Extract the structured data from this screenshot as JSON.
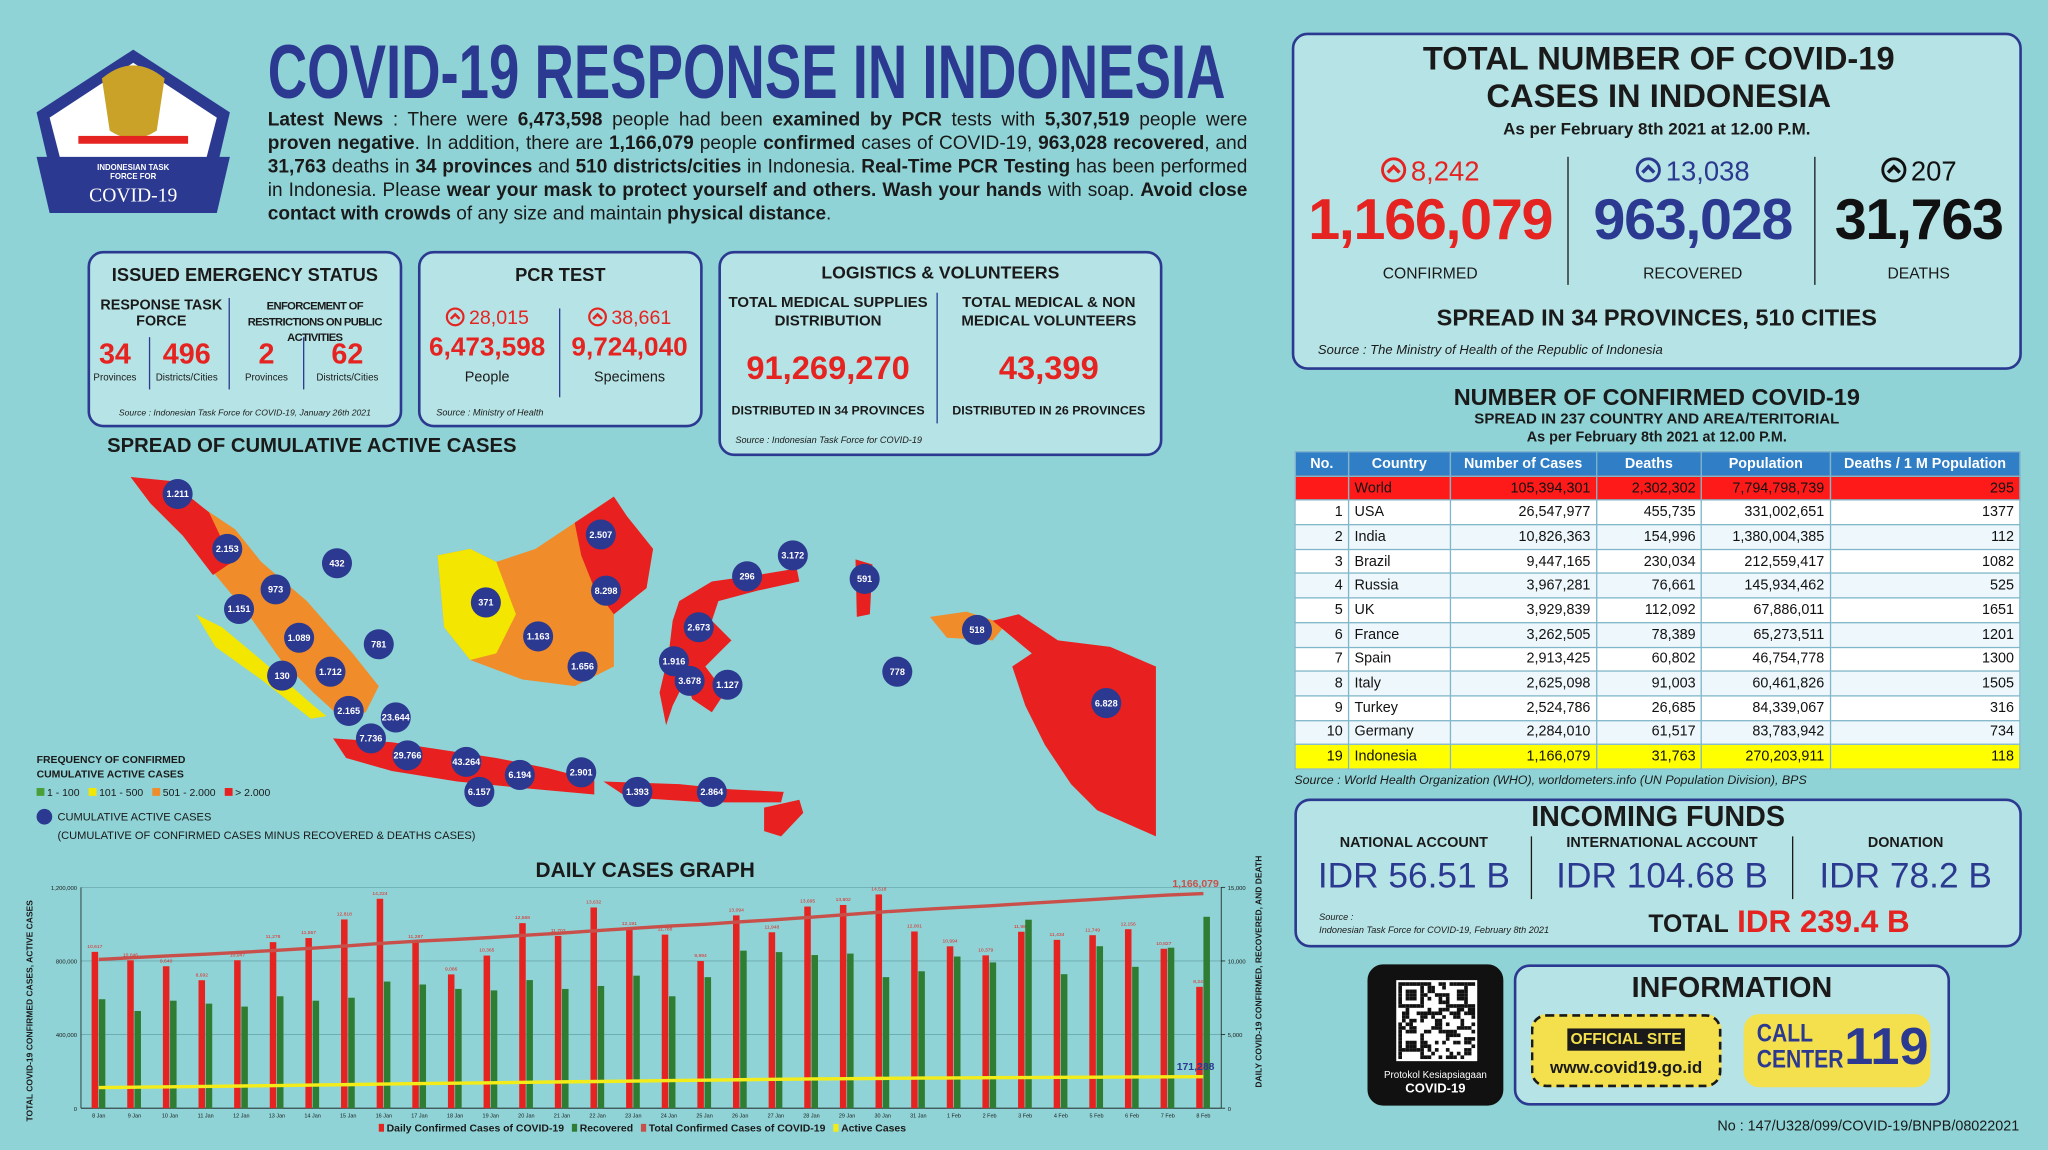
{
  "header": {
    "title": "COVID-19 RESPONSE IN INDONESIA",
    "logo": [
      "INDONESIAN TASK",
      "FORCE FOR",
      "COVID-19"
    ],
    "news": [
      {
        "text": "Latest News",
        "bold": true
      },
      " : There were ",
      {
        "text": "6,473,598",
        "bold": true
      },
      " people had been ",
      {
        "text": "examined by PCR",
        "bold": true
      },
      " tests with ",
      {
        "text": "5,307,519",
        "bold": true
      },
      " people were ",
      {
        "text": "proven negative",
        "bold": true
      },
      ". In addition, there are ",
      {
        "text": "1,166,079",
        "bold": true
      },
      " people ",
      {
        "text": "confirmed",
        "bold": true
      },
      " cases of COVID-19, ",
      {
        "text": "963,028 recovered",
        "bold": true
      },
      ", and ",
      {
        "text": "31,763",
        "bold": true
      },
      " deaths in ",
      {
        "text": "34 provinces",
        "bold": true
      },
      " and ",
      {
        "text": "510 districts/cities",
        "bold": true
      },
      " in Indonesia. ",
      {
        "text": "Real-Time PCR Testing",
        "bold": true
      },
      " has been performed in Indonesia. Please ",
      {
        "text": "wear your mask to protect yourself and others. Wash your hands",
        "bold": true
      },
      " with soap. ",
      {
        "text": "Avoid close contact with crowds",
        "bold": true
      },
      " of any size and maintain ",
      {
        "text": "physical distance",
        "bold": true
      },
      "."
    ]
  },
  "emergency": {
    "title": "ISSUED EMERGENCY STATUS",
    "groups": [
      {
        "label": "RESPONSE TASK FORCE",
        "items": [
          {
            "value": 34,
            "unit": "Provinces"
          },
          {
            "value": 496,
            "unit": "Districts/Cities"
          }
        ]
      },
      {
        "label": "ENFORCEMENT OF RESTRICTIONS ON PUBLIC ACTIVITIES",
        "items": [
          {
            "value": 2,
            "unit": "Provinces"
          },
          {
            "value": 62,
            "unit": "Districts/Cities"
          }
        ]
      }
    ],
    "source": "Source : Indonesian Task Force for COVID-19, January 26th 2021"
  },
  "pcr": {
    "title": "PCR TEST",
    "items": [
      {
        "increase": "28,015",
        "total": "6,473,598",
        "label": "People"
      },
      {
        "increase": "38,661",
        "total": "9,724,040",
        "label": "Specimens"
      }
    ],
    "source": "Source : Ministry of Health"
  },
  "logistics": {
    "title": "LOGISTICS & VOLUNTEERS",
    "items": [
      {
        "label": "TOTAL MEDICAL SUPPLIES DISTRIBUTION",
        "value": "91,269,270",
        "note": "DISTRIBUTED IN 34 PROVINCES"
      },
      {
        "label": "TOTAL MEDICAL & NON MEDICAL VOLUNTEERS",
        "value": "43,399",
        "note": "DISTRIBUTED IN 26 PROVINCES"
      }
    ],
    "source": "Source : Indonesian Task Force for COVID-19"
  },
  "totals": {
    "title": "TOTAL NUMBER OF COVID-19 CASES IN INDONESIA",
    "date": "As per February 8th 2021 at 12.00 P.M.",
    "stats": [
      {
        "increase": "8,242",
        "value": "1,166,079",
        "label": "CONFIRMED",
        "color": "#e52421"
      },
      {
        "increase": "13,038",
        "value": "963,028",
        "label": "RECOVERED",
        "color": "#2b3990"
      },
      {
        "increase": "207",
        "value": "31,763",
        "label": "DEATHS",
        "color": "#111111"
      }
    ],
    "spread": "SPREAD IN 34 PROVINCES, 510 CITIES",
    "source": "Source : The Ministry of Health of the Republic of Indonesia"
  },
  "world_table": {
    "title": "NUMBER OF CONFIRMED COVID-19",
    "subtitle": "SPREAD IN 237 COUNTRY AND AREA/TERITORIAL",
    "date": "As per February 8th 2021 at 12.00 P.M.",
    "columns": [
      "No.",
      "Country",
      "Number of Cases",
      "Deaths",
      "Population",
      "Deaths / 1 M Population"
    ],
    "rows": [
      [
        null,
        "World",
        "105,394,301",
        "2,302,302",
        "7,794,798,739",
        "295"
      ],
      [
        "1",
        "USA",
        "26,547,977",
        "455,735",
        "331,002,651",
        "1377"
      ],
      [
        "2",
        "India",
        "10,826,363",
        "154,996",
        "1,380,004,385",
        "112"
      ],
      [
        "3",
        "Brazil",
        "9,447,165",
        "230,034",
        "212,559,417",
        "1082"
      ],
      [
        "4",
        "Russia",
        "3,967,281",
        "76,661",
        "145,934,462",
        "525"
      ],
      [
        "5",
        "UK",
        "3,929,839",
        "112,092",
        "67,886,011",
        "1651"
      ],
      [
        "6",
        "France",
        "3,262,505",
        "78,389",
        "65,273,511",
        "1201"
      ],
      [
        "7",
        "Spain",
        "2,913,425",
        "60,802",
        "46,754,778",
        "1300"
      ],
      [
        "8",
        "Italy",
        "2,625,098",
        "91,003",
        "60,461,826",
        "1505"
      ],
      [
        "9",
        "Turkey",
        "2,524,786",
        "26,685",
        "84,339,067",
        "316"
      ],
      [
        "10",
        "Germany",
        "2,284,010",
        "61,517",
        "83,783,942",
        "734"
      ],
      [
        "19",
        "Indonesia",
        "1,166,079",
        "31,763",
        "270,203,911",
        "118"
      ]
    ],
    "row_colors": {
      "0": "#ff1a1a",
      "11": "#ffff00"
    },
    "source": "Source : World Health Organization (WHO), worldometers.info (UN Population Division), BPS"
  },
  "funds": {
    "title": "INCOMING FUNDS",
    "items": [
      {
        "label": "NATIONAL ACCOUNT",
        "value": "IDR 56.51 B"
      },
      {
        "label": "INTERNATIONAL ACCOUNT",
        "value": "IDR 104.68 B"
      },
      {
        "label": "DONATION",
        "value": "IDR 78.2 B"
      }
    ],
    "total_label": "TOTAL",
    "total": "IDR 239.4 B",
    "source": [
      "Source :",
      "Indonesian Task Force for COVID-19, February 8th 2021"
    ]
  },
  "qr": [
    "Protokol Kesiapsiagaan",
    "COVID-19"
  ],
  "information": {
    "title": "INFORMATION",
    "official_site": "OFFICIAL SITE",
    "url": "www.covid19.go.id",
    "call_center": [
      "CALL",
      "CENTER"
    ],
    "number": "119"
  },
  "map": {
    "title": "SPREAD OF CUMULATIVE ACTIVE CASES",
    "legend_title": [
      "FREQUENCY OF CONFIRMED",
      "CUMULATIVE ACTIVE CASES"
    ],
    "legend": [
      {
        "label": "1 - 100",
        "color": "#4c9f38"
      },
      {
        "label": "101 - 500",
        "color": "#f3e600"
      },
      {
        "label": "501 - 2.000",
        "color": "#f08c2a"
      },
      {
        "label": "> 2.000",
        "color": "#e8201f"
      }
    ],
    "bubble_legend": [
      "CUMULATIVE ACTIVE CASES",
      "(CUMULATIVE OF CONFIRMED CASES MINUS RECOVERED & DEATHS CASES)"
    ],
    "bubbles": [
      "1.211",
      "2.153",
      "432",
      "973",
      "1.151",
      "1.089",
      "781",
      "1.712",
      "130",
      "2.165",
      "23.644",
      "7.736",
      "29.766",
      "43.264",
      "6.157",
      "6.194",
      "2.901",
      "1.393",
      "2.864",
      "371",
      "1.163",
      "2.507",
      "8.298",
      "1.656",
      "296",
      "3.172",
      "591",
      "2.673",
      "1.916",
      "3.678",
      "1.127",
      "778",
      "518",
      "6.828"
    ]
  },
  "chart_data": {
    "type": "bar",
    "title": "DAILY CASES GRAPH",
    "y_label": "TOTAL COVID-19 CONFIRMED CASES, ACTIVE CASES",
    "y2_label": "DAILY COVID-19 CONFIRMED, RECOVERED, AND DEATH",
    "categories": [
      "8 Jan",
      "9 Jan",
      "10 Jan",
      "11 Jan",
      "12 Jan",
      "13 Jan",
      "14 Jan",
      "15 Jan",
      "16 Jan",
      "17 Jan",
      "18 Jan",
      "19 Jan",
      "20 Jan",
      "21 Jan",
      "22 Jan",
      "23 Jan",
      "24 Jan",
      "25 Jan",
      "26 Jan",
      "27 Jan",
      "28 Jan",
      "29 Jan",
      "30 Jan",
      "31 Jan",
      "1 Feb",
      "2 Feb",
      "3 Feb",
      "4 Feb",
      "5 Feb",
      "6 Feb",
      "7 Feb",
      "8 Feb"
    ],
    "ylim": [
      0,
      1200000
    ],
    "yticks": [
      0,
      {
        "value": 400000,
        "label": "400,000"
      },
      {
        "value": 800000,
        "label": "800,000"
      },
      {
        "value": 1200000,
        "label": "1,200,000"
      }
    ],
    "y2lim": [
      0,
      15000
    ],
    "y2ticks": [
      0,
      {
        "value": 5000,
        "label": "5,000"
      },
      {
        "value": 10000,
        "label": "10,000"
      },
      {
        "value": 15000,
        "label": "15,000"
      }
    ],
    "grid": true,
    "series": [
      {
        "name": "Daily Confirmed Cases of COVID-19",
        "type": "bar",
        "axis": "y2",
        "color": "#e52421",
        "values": [
          10617,
          10046,
          9640,
          8692,
          10047,
          11278,
          11557,
          12818,
          14224,
          11287,
          9086,
          10365,
          12568,
          11703,
          13632,
          12191,
          11788,
          9994,
          13094,
          11948,
          13695,
          13802,
          14518,
          12001,
          10994,
          10379,
          11984,
          11434,
          11749,
          12156,
          10827,
          8242
        ],
        "value_labels": [
          "10,617",
          "10,046",
          "9,640",
          "8,692",
          "10,047",
          "11,278",
          "11,557",
          "12,818",
          "14,224",
          "11,287",
          "9,086",
          "10,365",
          "12,568",
          "11,703",
          "13,632",
          "12,191",
          "11,788",
          "9,994",
          "13,094",
          "11,948",
          "13,695",
          "13,802",
          "14,518",
          "12,001",
          "10,994",
          "10,379",
          "11,984",
          "11,434",
          "11,749",
          "12,156",
          "10,827",
          "8,242"
        ]
      },
      {
        "name": "Recovered",
        "type": "bar",
        "axis": "y2",
        "color": "#2e7d32",
        "values": [
          7400,
          6600,
          7300,
          7100,
          6900,
          7600,
          7300,
          7500,
          8600,
          8400,
          8100,
          8000,
          8700,
          8100,
          8300,
          9000,
          7600,
          8900,
          10700,
          10600,
          10400,
          10500,
          8900,
          9300,
          10300,
          9900,
          12800,
          9100,
          11000,
          9600,
          10900,
          13000
        ]
      },
      {
        "name": "Total Confirmed Cases of COVID-19",
        "type": "line",
        "axis": "y",
        "color": "#c9504a",
        "values": [
          808340,
          818386,
          828026,
          836718,
          846765,
          858043,
          869600,
          882418,
          896642,
          907929,
          917015,
          927380,
          939948,
          951651,
          965283,
          977474,
          989262,
          999256,
          1012350,
          1024298,
          1037993,
          1051795,
          1066313,
          1078314,
          1089308,
          1099687,
          1111671,
          1123105,
          1134854,
          1147010,
          1157837,
          1166079
        ],
        "end_label": "1,166,079"
      },
      {
        "name": "Active Cases",
        "type": "line",
        "axis": "y",
        "color": "#f3ec19",
        "values": [
          112000,
          114000,
          116000,
          118000,
          120500,
          123000,
          125500,
          128000,
          131000,
          134000,
          136000,
          138000,
          140500,
          143000,
          145000,
          147500,
          150000,
          152000,
          154500,
          157000,
          159000,
          160500,
          162000,
          163500,
          164500,
          165500,
          166500,
          167500,
          168500,
          169500,
          170500,
          171288
        ],
        "end_label": "171,288"
      }
    ]
  },
  "footer": "No : 147/U328/099/COVID-19/BNPB/08022021"
}
